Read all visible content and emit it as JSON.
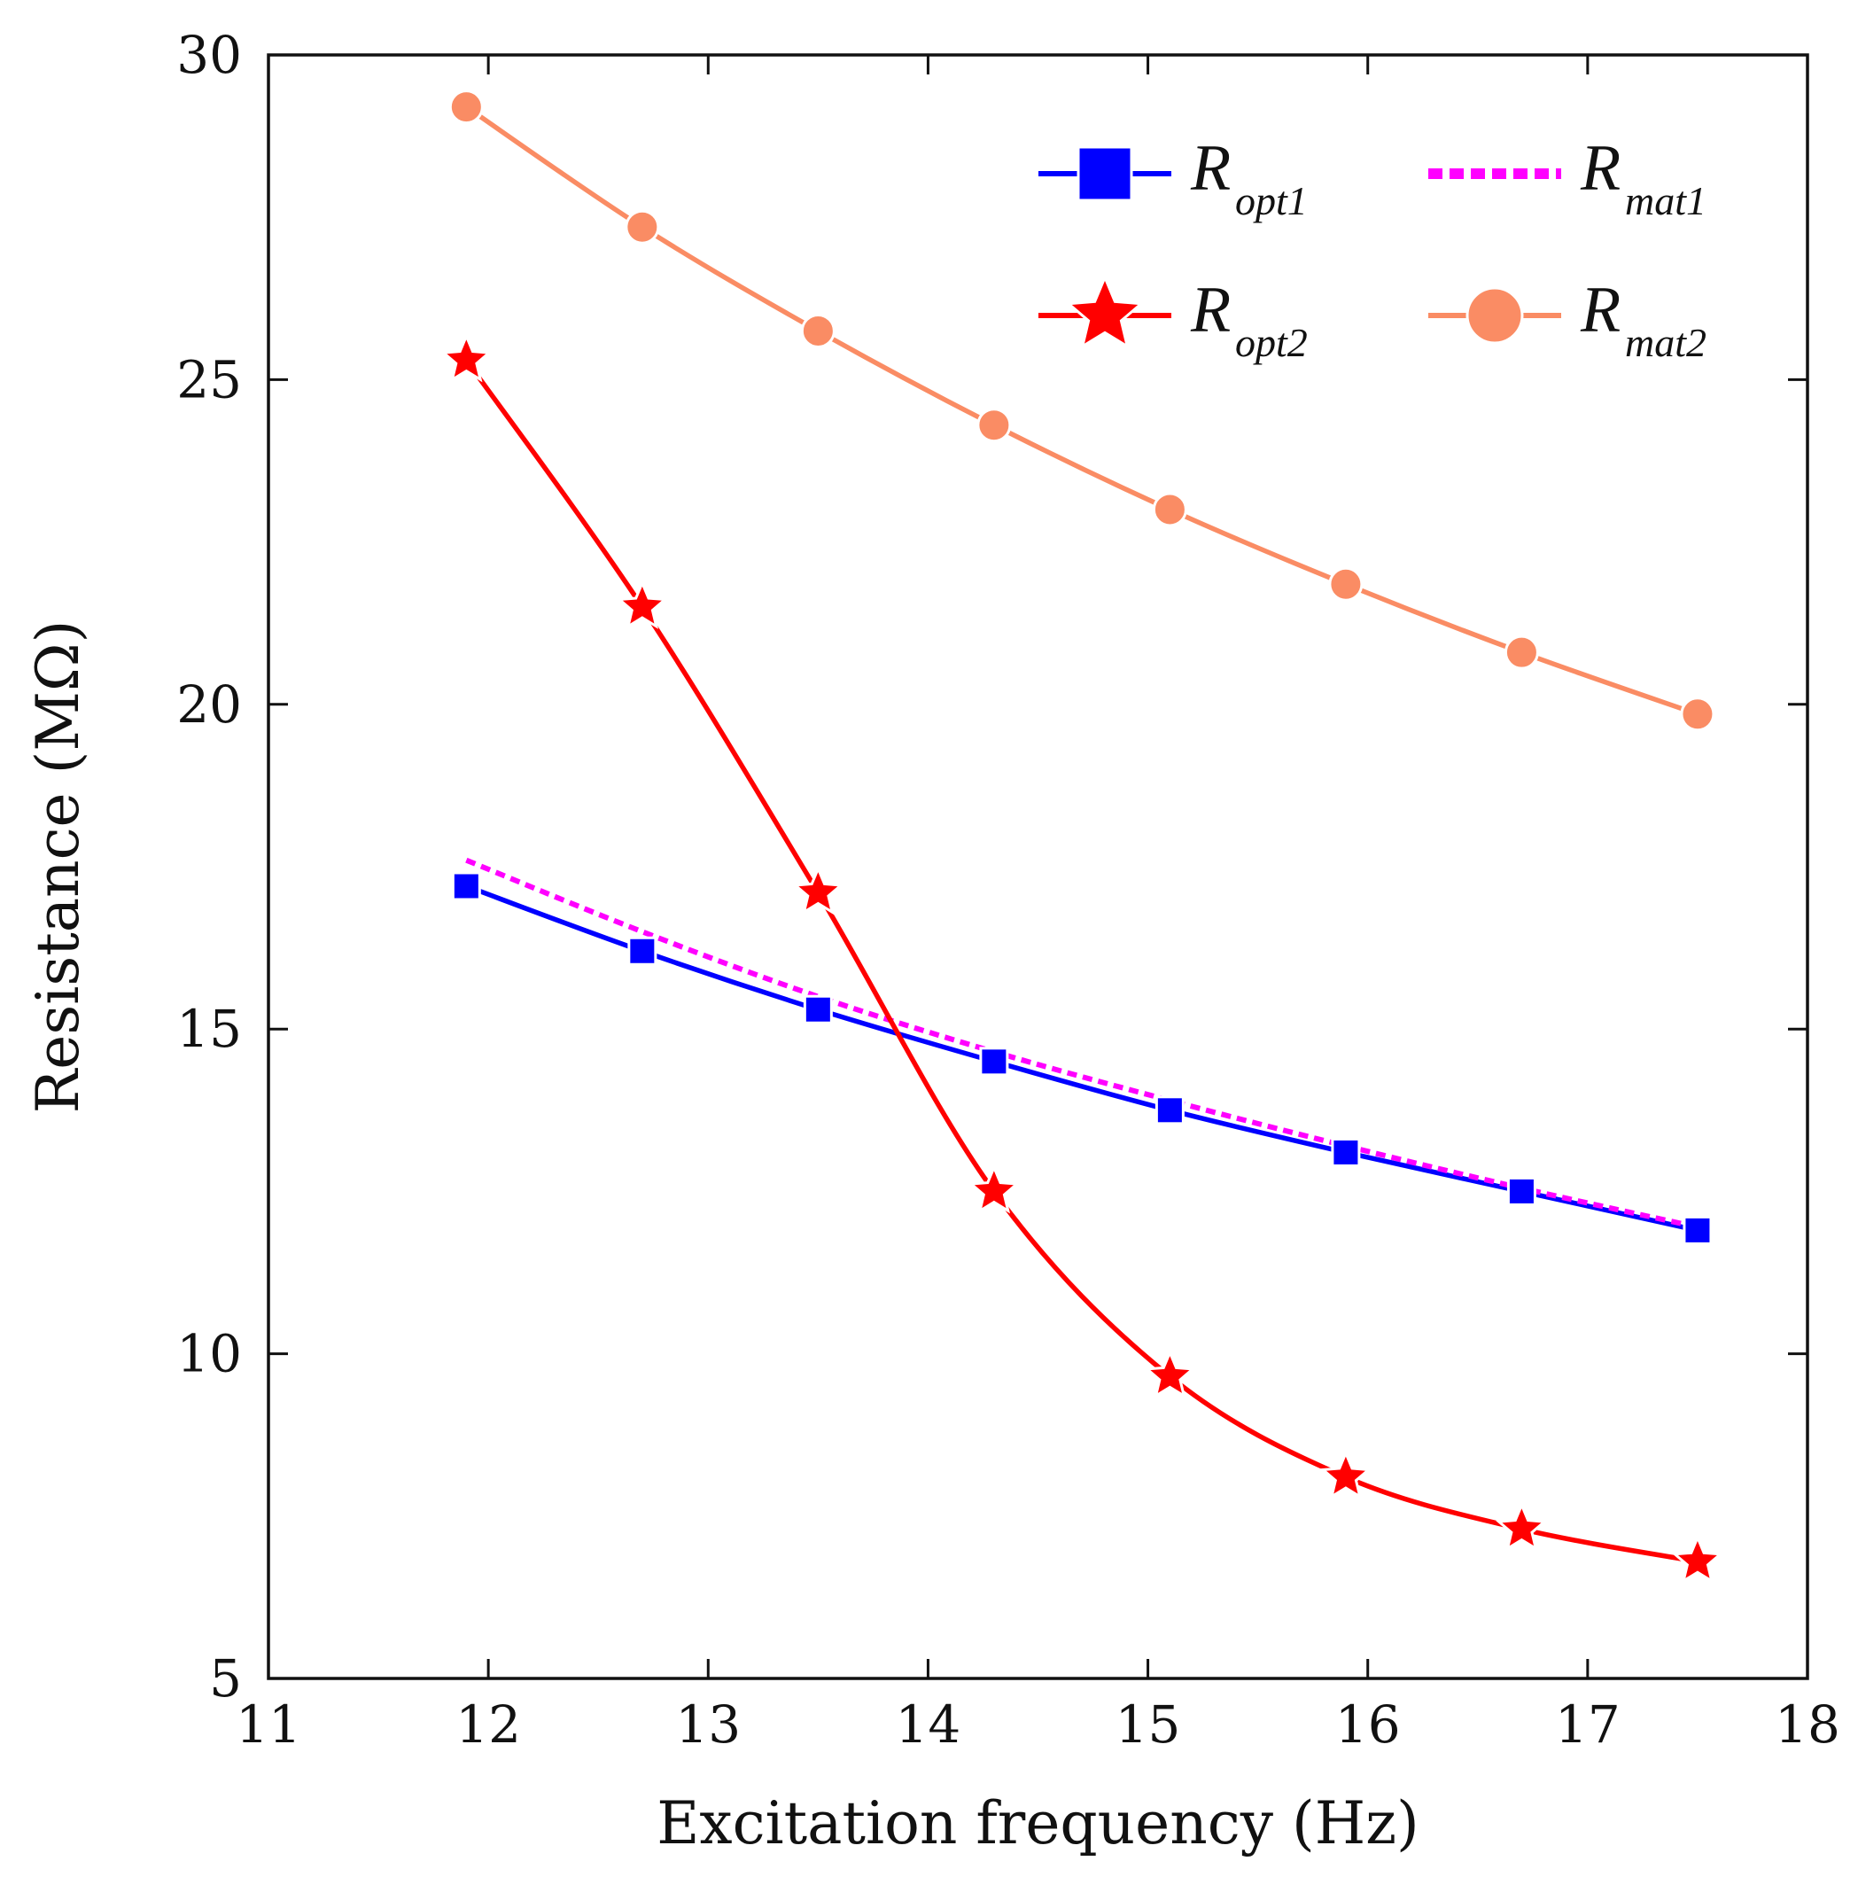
{
  "chart_data": {
    "type": "line",
    "title": "",
    "xlabel": "Excitation frequency  (Hz)",
    "ylabel": "Resistance  (MΩ)",
    "xlim": [
      11,
      18
    ],
    "ylim": [
      5,
      30
    ],
    "xticks": [
      11,
      12,
      13,
      14,
      15,
      16,
      17,
      18
    ],
    "yticks": [
      5,
      10,
      15,
      20,
      25,
      30
    ],
    "grid": false,
    "legend_position": "top-right",
    "series": [
      {
        "name": "R_opt1",
        "label_main": "R",
        "label_sub": "opt1",
        "color": "#0000ff",
        "marker": "square",
        "line_style": "solid",
        "x": [
          11.9,
          12.7,
          13.5,
          14.3,
          15.1,
          15.9,
          16.7,
          17.5
        ],
        "values": [
          17.2,
          16.2,
          15.3,
          14.5,
          13.75,
          13.1,
          12.5,
          11.9
        ]
      },
      {
        "name": "R_mat1",
        "label_main": "R",
        "label_sub": "mat1",
        "color": "#ff00ff",
        "marker": "none",
        "line_style": "dotted",
        "x": [
          11.9,
          12.7,
          13.5,
          14.3,
          15.1,
          15.9,
          16.7,
          17.5
        ],
        "values": [
          17.6,
          16.5,
          15.5,
          14.65,
          13.9,
          13.2,
          12.55,
          11.95
        ]
      },
      {
        "name": "R_opt2",
        "label_main": "R",
        "label_sub": "opt2",
        "color": "#ff0000",
        "marker": "star",
        "line_style": "solid",
        "x": [
          11.9,
          12.7,
          13.5,
          14.3,
          15.1,
          15.9,
          16.7,
          17.5
        ],
        "values": [
          25.3,
          21.5,
          17.1,
          12.5,
          9.65,
          8.1,
          7.3,
          6.8
        ]
      },
      {
        "name": "R_mat2",
        "label_main": "R",
        "label_sub": "mat2",
        "color": "#fa8c64",
        "marker": "circle",
        "line_style": "solid",
        "x": [
          11.9,
          12.7,
          13.5,
          14.3,
          15.1,
          15.9,
          16.7,
          17.5
        ],
        "values": [
          29.2,
          27.35,
          25.75,
          24.3,
          23.0,
          21.85,
          20.8,
          19.85
        ]
      }
    ]
  }
}
